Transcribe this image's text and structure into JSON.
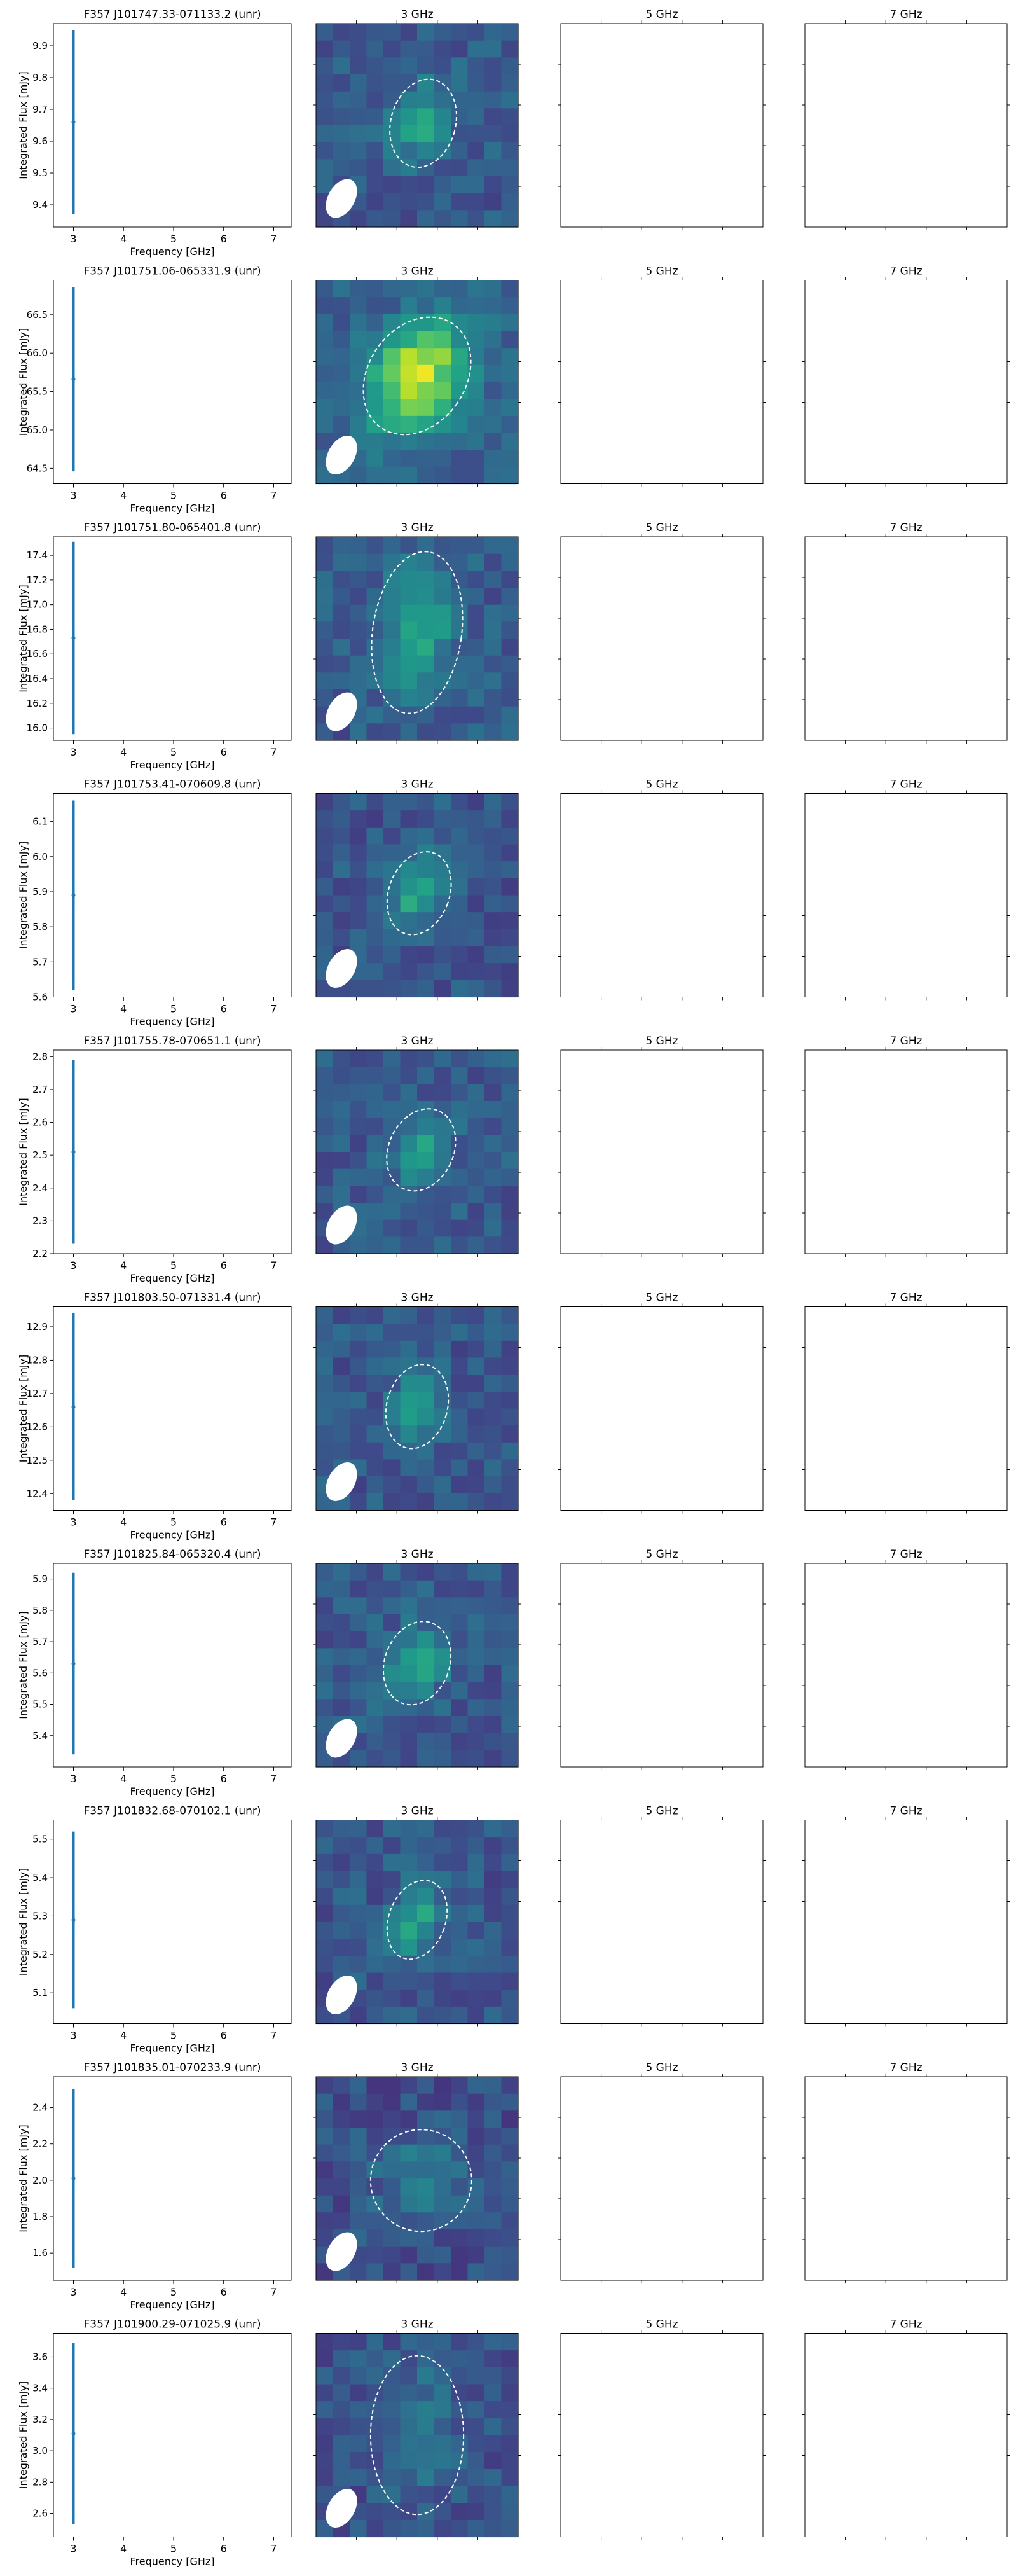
{
  "figure": {
    "colormap": "viridis",
    "errorbar_color": "#1f77b4",
    "contour_color": "#ffffff",
    "beam_color": "#ffffff"
  },
  "chart_data": [
    {
      "type": "scatter",
      "title": "F357 J101747.33-071133.2 (unr)",
      "xlabel": "Frequency [GHz]",
      "ylabel": "Integrated Flux [mJy]",
      "x": [
        3
      ],
      "y": [
        9.66
      ],
      "yerr": [
        0.29
      ],
      "xlim": [
        2.6,
        7.35
      ],
      "ylim": [
        9.33,
        9.97
      ],
      "xticks": [
        "3",
        "4",
        "5",
        "6",
        "7"
      ],
      "yticks": [
        "9.4",
        "9.5",
        "9.6",
        "9.7",
        "9.8",
        "9.9"
      ],
      "image_panels": [
        "3 GHz",
        "5 GHz",
        "7 GHz"
      ]
    },
    {
      "type": "scatter",
      "title": "F357 J101751.06-065331.9 (unr)",
      "xlabel": "Frequency [GHz]",
      "ylabel": "Integrated Flux [mJy]",
      "x": [
        3
      ],
      "y": [
        65.66
      ],
      "yerr": [
        1.2
      ],
      "xlim": [
        2.6,
        7.35
      ],
      "ylim": [
        64.3,
        66.95
      ],
      "xticks": [
        "3",
        "4",
        "5",
        "6",
        "7"
      ],
      "yticks": [
        "64.5",
        "65.0",
        "65.5",
        "66.0",
        "66.5"
      ],
      "image_panels": [
        "3 GHz",
        "5 GHz",
        "7 GHz"
      ]
    },
    {
      "type": "scatter",
      "title": "F357 J101751.80-065401.8 (unr)",
      "xlabel": "Frequency [GHz]",
      "ylabel": "Integrated Flux [mJy]",
      "x": [
        3
      ],
      "y": [
        16.73
      ],
      "yerr": [
        0.78
      ],
      "xlim": [
        2.6,
        7.35
      ],
      "ylim": [
        15.9,
        17.55
      ],
      "xticks": [
        "3",
        "4",
        "5",
        "6",
        "7"
      ],
      "yticks": [
        "16.0",
        "16.2",
        "16.4",
        "16.6",
        "16.8",
        "17.0",
        "17.2",
        "17.4"
      ],
      "image_panels": [
        "3 GHz",
        "5 GHz",
        "7 GHz"
      ]
    },
    {
      "type": "scatter",
      "title": "F357 J101753.41-070609.8 (unr)",
      "xlabel": "Frequency [GHz]",
      "ylabel": "Integrated Flux [mJy]",
      "x": [
        3
      ],
      "y": [
        5.89
      ],
      "yerr": [
        0.27
      ],
      "xlim": [
        2.6,
        7.35
      ],
      "ylim": [
        5.6,
        6.18
      ],
      "xticks": [
        "3",
        "4",
        "5",
        "6",
        "7"
      ],
      "yticks": [
        "5.6",
        "5.7",
        "5.8",
        "5.9",
        "6.0",
        "6.1"
      ],
      "image_panels": [
        "3 GHz",
        "5 GHz",
        "7 GHz"
      ]
    },
    {
      "type": "scatter",
      "title": "F357 J101755.78-070651.1 (unr)",
      "xlabel": "Frequency [GHz]",
      "ylabel": "Integrated Flux [mJy]",
      "x": [
        3
      ],
      "y": [
        2.51
      ],
      "yerr": [
        0.28
      ],
      "xlim": [
        2.6,
        7.35
      ],
      "ylim": [
        2.2,
        2.82
      ],
      "xticks": [
        "3",
        "4",
        "5",
        "6",
        "7"
      ],
      "yticks": [
        "2.2",
        "2.3",
        "2.4",
        "2.5",
        "2.6",
        "2.7",
        "2.8"
      ],
      "image_panels": [
        "3 GHz",
        "5 GHz",
        "7 GHz"
      ]
    },
    {
      "type": "scatter",
      "title": "F357 J101803.50-071331.4 (unr)",
      "xlabel": "Frequency [GHz]",
      "ylabel": "Integrated Flux [mJy]",
      "x": [
        3
      ],
      "y": [
        12.66
      ],
      "yerr": [
        0.28
      ],
      "xlim": [
        2.6,
        7.35
      ],
      "ylim": [
        12.35,
        12.96
      ],
      "xticks": [
        "3",
        "4",
        "5",
        "6",
        "7"
      ],
      "yticks": [
        "12.4",
        "12.5",
        "12.6",
        "12.7",
        "12.8",
        "12.9"
      ],
      "image_panels": [
        "3 GHz",
        "5 GHz",
        "7 GHz"
      ]
    },
    {
      "type": "scatter",
      "title": "F357 J101825.84-065320.4 (unr)",
      "xlabel": "Frequency [GHz]",
      "ylabel": "Integrated Flux [mJy]",
      "x": [
        3
      ],
      "y": [
        5.63
      ],
      "yerr": [
        0.29
      ],
      "xlim": [
        2.6,
        7.35
      ],
      "ylim": [
        5.3,
        5.95
      ],
      "xticks": [
        "3",
        "4",
        "5",
        "6",
        "7"
      ],
      "yticks": [
        "5.4",
        "5.5",
        "5.6",
        "5.7",
        "5.8",
        "5.9"
      ],
      "image_panels": [
        "3 GHz",
        "5 GHz",
        "7 GHz"
      ]
    },
    {
      "type": "scatter",
      "title": "F357 J101832.68-070102.1 (unr)",
      "xlabel": "Frequency [GHz]",
      "ylabel": "Integrated Flux [mJy]",
      "x": [
        3
      ],
      "y": [
        5.29
      ],
      "yerr": [
        0.23
      ],
      "xlim": [
        2.6,
        7.35
      ],
      "ylim": [
        5.02,
        5.55
      ],
      "xticks": [
        "3",
        "4",
        "5",
        "6",
        "7"
      ],
      "yticks": [
        "5.1",
        "5.2",
        "5.3",
        "5.4",
        "5.5"
      ],
      "image_panels": [
        "3 GHz",
        "5 GHz",
        "7 GHz"
      ]
    },
    {
      "type": "scatter",
      "title": "F357 J101835.01-070233.9 (unr)",
      "xlabel": "Frequency [GHz]",
      "ylabel": "Integrated Flux [mJy]",
      "x": [
        3
      ],
      "y": [
        2.01
      ],
      "yerr": [
        0.49
      ],
      "xlim": [
        2.6,
        7.35
      ],
      "ylim": [
        1.45,
        2.57
      ],
      "xticks": [
        "3",
        "4",
        "5",
        "6",
        "7"
      ],
      "yticks": [
        "1.6",
        "1.8",
        "2.0",
        "2.2",
        "2.4"
      ],
      "image_panels": [
        "3 GHz",
        "5 GHz",
        "7 GHz"
      ]
    },
    {
      "type": "scatter",
      "title": "F357 J101900.29-071025.9 (unr)",
      "xlabel": "Frequency [GHz]",
      "ylabel": "Integrated Flux [mJy]",
      "x": [
        3
      ],
      "y": [
        3.11
      ],
      "yerr": [
        0.58
      ],
      "xlim": [
        2.6,
        7.35
      ],
      "ylim": [
        2.45,
        3.75
      ],
      "xticks": [
        "3",
        "4",
        "5",
        "6",
        "7"
      ],
      "yticks": [
        "2.6",
        "2.8",
        "3.0",
        "3.2",
        "3.4",
        "3.6"
      ],
      "image_panels": [
        "3 GHz",
        "5 GHz",
        "7 GHz"
      ]
    }
  ]
}
